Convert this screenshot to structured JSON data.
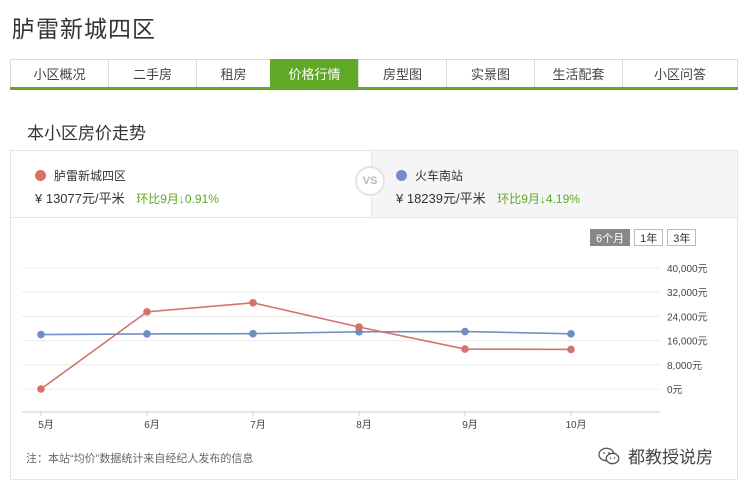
{
  "page": {
    "title": "胪雷新城四区"
  },
  "tabs": [
    {
      "label": "小区概况",
      "active": false
    },
    {
      "label": "二手房",
      "active": false
    },
    {
      "label": "租房",
      "active": false
    },
    {
      "label": "价格行情",
      "active": true
    },
    {
      "label": "房型图",
      "active": false
    },
    {
      "label": "实景图",
      "active": false
    },
    {
      "label": "生活配套",
      "active": false
    },
    {
      "label": "小区问答",
      "active": false
    }
  ],
  "section": {
    "title": "本小区房价走势"
  },
  "compare": {
    "left": {
      "name": "胪雷新城四区",
      "price": "¥ 13077元/平米",
      "change": "环比9月↓0.91%",
      "color": "#d4736a"
    },
    "vs": "VS",
    "right": {
      "name": "火车南站",
      "price": "¥ 18239元/平米",
      "change": "环比9月↓4.19%",
      "color": "#6f8fc4"
    }
  },
  "range_buttons": [
    {
      "label": "6个月",
      "active": true
    },
    {
      "label": "1年",
      "active": false
    },
    {
      "label": "3年",
      "active": false
    }
  ],
  "chart_data": {
    "type": "line",
    "categories": [
      "5月",
      "6月",
      "7月",
      "8月",
      "9月",
      "10月"
    ],
    "series": [
      {
        "name": "胪雷新城四区",
        "color": "#d4736a",
        "values": [
          0,
          25500,
          28500,
          20500,
          13200,
          13077
        ]
      },
      {
        "name": "火车南站",
        "color": "#6f8fc4",
        "values": [
          18000,
          18200,
          18300,
          18900,
          19000,
          18239
        ]
      }
    ],
    "yticks": [
      "40,000元",
      "32,000元",
      "24,000元",
      "16,000元",
      "8,000元",
      "0元"
    ],
    "ylim": [
      0,
      40000
    ],
    "grid": true
  },
  "footer": {
    "note": "注：本站“均价”数据统计来自经纪人发布的信息",
    "watermark": "都教授说房"
  }
}
